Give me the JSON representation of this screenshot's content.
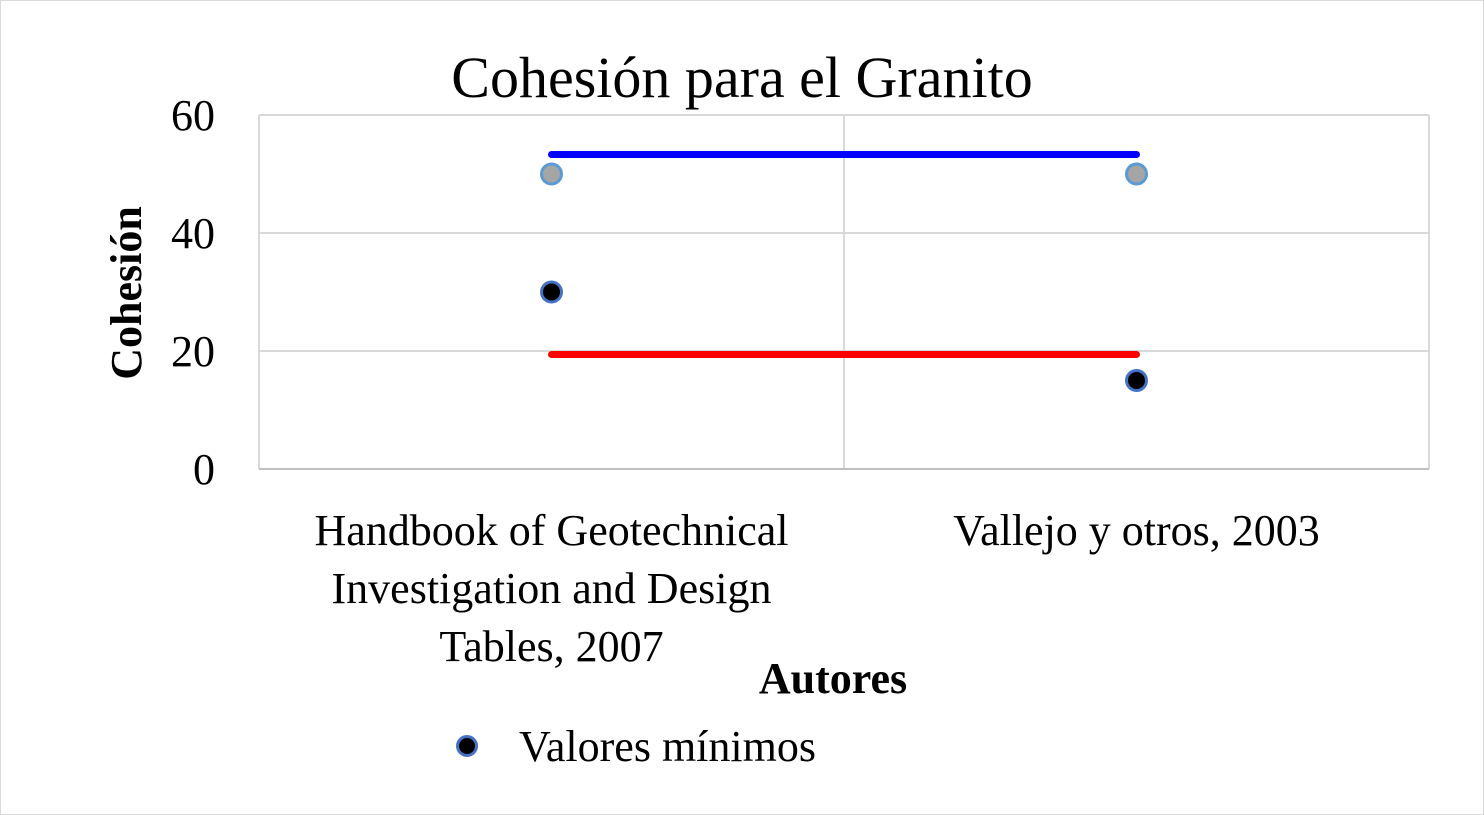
{
  "chart_data": {
    "type": "scatter",
    "title": "Cohesión para el Granito",
    "xlabel": "Autores",
    "ylabel": "Cohesión",
    "ylim": [
      0,
      60
    ],
    "yticks": [
      0,
      20,
      40,
      60
    ],
    "categories": [
      [
        "Handbook of Geotechnical",
        "Investigation and Design",
        "Tables, 2007"
      ],
      [
        "Vallejo y otros, 2003"
      ]
    ],
    "grid": true,
    "legend_position": "bottom",
    "series": [
      {
        "name": "Valores mínimos",
        "values": [
          30,
          15
        ],
        "color": "#000000",
        "edge": "#4472c4",
        "in_legend": true
      },
      {
        "values": [
          50,
          50
        ],
        "color": "#a5a5a5",
        "edge": "#5b9bd5",
        "in_legend": false
      }
    ],
    "reference_lines": [
      {
        "value": 53.3,
        "color": "#0000ff"
      },
      {
        "value": 19.4,
        "color": "#ff0000"
      }
    ]
  }
}
